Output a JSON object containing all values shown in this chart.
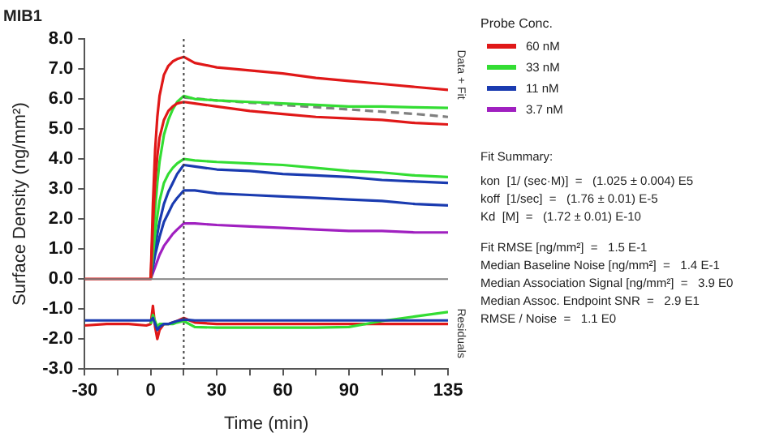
{
  "chart_data": {
    "type": "line",
    "title": "MIB1",
    "xlabel": "Time (min)",
    "ylabel": "Surface Density (ng/mm²)",
    "legend_title": "Probe Conc.",
    "legend": "top right",
    "grid": false,
    "x": [
      -30,
      -20,
      -10,
      -2,
      0,
      1,
      2,
      3,
      4,
      6,
      8,
      10,
      12,
      15,
      20,
      30,
      45,
      60,
      75,
      90,
      105,
      120,
      135
    ],
    "xlim": [
      -30,
      135
    ],
    "xticks": [
      -30,
      {
        "value": -15,
        "label": null
      },
      0,
      {
        "value": 15,
        "label": null
      },
      30,
      {
        "value": 45,
        "label": null
      },
      60,
      {
        "value": 75,
        "label": null
      },
      90,
      {
        "value": 105,
        "label": null
      },
      {
        "value": 120,
        "label": null
      },
      135
    ],
    "ylim": [
      -3,
      8
    ],
    "yticks": [
      {
        "value": -3,
        "label": "-3.0"
      },
      {
        "value": -2,
        "label": "-2.0"
      },
      {
        "value": -1,
        "label": "-1.0"
      },
      {
        "value": 0,
        "label": "0.0"
      },
      {
        "value": 1,
        "label": "1.0"
      },
      {
        "value": 2,
        "label": "2.0"
      },
      {
        "value": 3,
        "label": "3.0"
      },
      {
        "value": 4,
        "label": "4.0"
      },
      {
        "value": 5,
        "label": "5.0"
      },
      {
        "value": 6,
        "label": "6.0"
      },
      {
        "value": 7,
        "label": "7.0"
      },
      {
        "value": 8,
        "label": "8.0"
      }
    ],
    "series": [
      {
        "name": "60 nM",
        "color": "#e01818",
        "values": [
          0,
          0,
          0,
          0,
          0,
          2.5,
          4.3,
          5.4,
          6.1,
          6.8,
          7.1,
          7.25,
          7.33,
          7.4,
          7.2,
          7.05,
          6.95,
          6.85,
          6.7,
          6.6,
          6.5,
          6.4,
          6.3
        ]
      },
      {
        "color": "#e01818",
        "values": [
          null,
          null,
          null,
          null,
          0,
          1.8,
          3.2,
          4.1,
          4.7,
          5.3,
          5.6,
          5.75,
          5.85,
          5.9,
          5.85,
          5.75,
          5.6,
          5.5,
          5.4,
          5.35,
          5.3,
          5.2,
          5.15
        ]
      },
      {
        "name": "33 nM",
        "color": "#33dd33",
        "values": [
          null,
          null,
          null,
          null,
          0,
          1.2,
          2.3,
          3.2,
          3.9,
          4.8,
          5.3,
          5.65,
          5.9,
          6.1,
          6,
          5.95,
          5.9,
          5.85,
          5.8,
          5.75,
          5.75,
          5.72,
          5.7
        ]
      },
      {
        "color": "#33dd33",
        "values": [
          null,
          null,
          null,
          null,
          0,
          0.8,
          1.5,
          2.1,
          2.6,
          3.2,
          3.5,
          3.7,
          3.85,
          4,
          3.95,
          3.9,
          3.85,
          3.8,
          3.7,
          3.6,
          3.55,
          3.45,
          3.4
        ]
      },
      {
        "name": "11 nM",
        "color": "#1a3bb0",
        "values": [
          null,
          null,
          null,
          null,
          0,
          0.5,
          1,
          1.5,
          1.9,
          2.5,
          2.9,
          3.2,
          3.5,
          3.8,
          3.75,
          3.65,
          3.6,
          3.5,
          3.45,
          3.4,
          3.3,
          3.25,
          3.2
        ]
      },
      {
        "color": "#1a3bb0",
        "values": [
          null,
          null,
          null,
          null,
          0,
          0.4,
          0.8,
          1.1,
          1.4,
          1.9,
          2.2,
          2.5,
          2.7,
          2.95,
          2.95,
          2.85,
          2.8,
          2.75,
          2.7,
          2.65,
          2.6,
          2.5,
          2.45
        ]
      },
      {
        "name": "3.7 nM",
        "color": "#a020c0",
        "values": [
          null,
          null,
          null,
          null,
          0,
          0.2,
          0.4,
          0.6,
          0.8,
          1.1,
          1.3,
          1.5,
          1.65,
          1.85,
          1.85,
          1.8,
          1.75,
          1.7,
          1.65,
          1.6,
          1.6,
          1.55,
          1.55
        ]
      },
      {
        "color": "#808080",
        "line_style": "dashed",
        "x": [
          15,
          30,
          60,
          90,
          120,
          135
        ],
        "values": [
          6.05,
          5.95,
          5.8,
          5.65,
          5.5,
          5.4
        ]
      },
      {
        "color": "#1a3bb0",
        "values": [
          -1.38,
          -1.38,
          -1.38,
          -1.38,
          -1.38,
          -1.3,
          -1.5,
          -1.7,
          -1.6,
          -1.5,
          -1.5,
          -1.45,
          -1.4,
          -1.35,
          -1.38,
          -1.38,
          -1.38,
          -1.38,
          -1.38,
          -1.38,
          -1.38,
          -1.38,
          -1.38
        ]
      },
      {
        "color": "#33dd33",
        "values": [
          null,
          null,
          null,
          null,
          -1.5,
          -1.2,
          -1.4,
          -1.6,
          -1.5,
          -1.5,
          -1.5,
          -1.5,
          -1.45,
          -1.4,
          -1.6,
          -1.62,
          -1.62,
          -1.62,
          -1.62,
          -1.6,
          -1.4,
          -1.25,
          -1.1
        ]
      },
      {
        "color": "#e01818",
        "values": [
          -1.55,
          -1.5,
          -1.5,
          -1.55,
          -1.5,
          -0.9,
          -1.6,
          -2,
          -1.7,
          -1.5,
          -1.5,
          -1.45,
          -1.4,
          -1.3,
          -1.45,
          -1.5,
          -1.5,
          -1.5,
          -1.5,
          -1.5,
          -1.5,
          -1.5,
          -1.5
        ]
      }
    ],
    "ref_lines": [
      {
        "axis": "x",
        "value": 15,
        "color": "#404040",
        "line_style": "dotted"
      },
      {
        "axis": "y",
        "value": 0,
        "color": "#808080"
      }
    ],
    "annotations": [
      "Data + Fit",
      "Residuals",
      "Fit Summary:",
      "kon  [1/ (sec·M)]  =   (1.025 ± 0.004) E5",
      "koff  [1/sec]  =   (1.76 ± 0.01) E-5",
      "Kd  [M]  =   (1.72 ± 0.01) E-10",
      "Fit RMSE [ng/mm²]  =   1.5 E-1",
      "Median Baseline Noise [ng/mm²]  =   1.4 E-1",
      "Median Association Signal [ng/mm²]  =   3.9 E0",
      "Median Assoc. Endpoint SNR  =   2.9 E1",
      "RMSE / Noise  =   1.1 E0"
    ]
  }
}
